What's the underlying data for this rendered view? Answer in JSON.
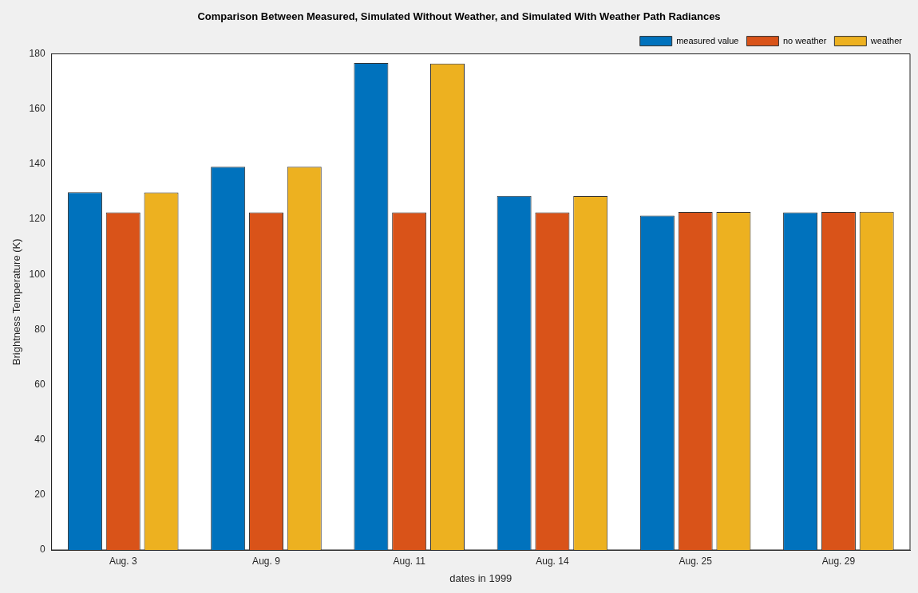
{
  "chart_data": {
    "type": "bar",
    "title": "Comparison Between Measured, Simulated Without Weather, and Simulated With Weather Path Radiances",
    "xlabel": "dates in 1999",
    "ylabel": "Brightness Temperature (K)",
    "categories": [
      "Aug. 3",
      "Aug. 9",
      "Aug. 11",
      "Aug. 14",
      "Aug. 25",
      "Aug. 29"
    ],
    "series": [
      {
        "name": "measured value",
        "color": "#0072bd",
        "values": [
          129.8,
          139.0,
          176.7,
          128.5,
          121.3,
          122.5
        ]
      },
      {
        "name": "no weather",
        "color": "#d95319",
        "values": [
          122.5,
          122.5,
          122.5,
          122.5,
          122.6,
          122.6
        ]
      },
      {
        "name": "weather",
        "color": "#edb120",
        "values": [
          129.7,
          139.0,
          176.5,
          128.4,
          122.6,
          122.7
        ]
      }
    ],
    "ylim": [
      0,
      180
    ],
    "yticks": [
      0,
      20,
      40,
      60,
      80,
      100,
      120,
      140,
      160,
      180
    ],
    "grid": false,
    "legend": "top right"
  }
}
